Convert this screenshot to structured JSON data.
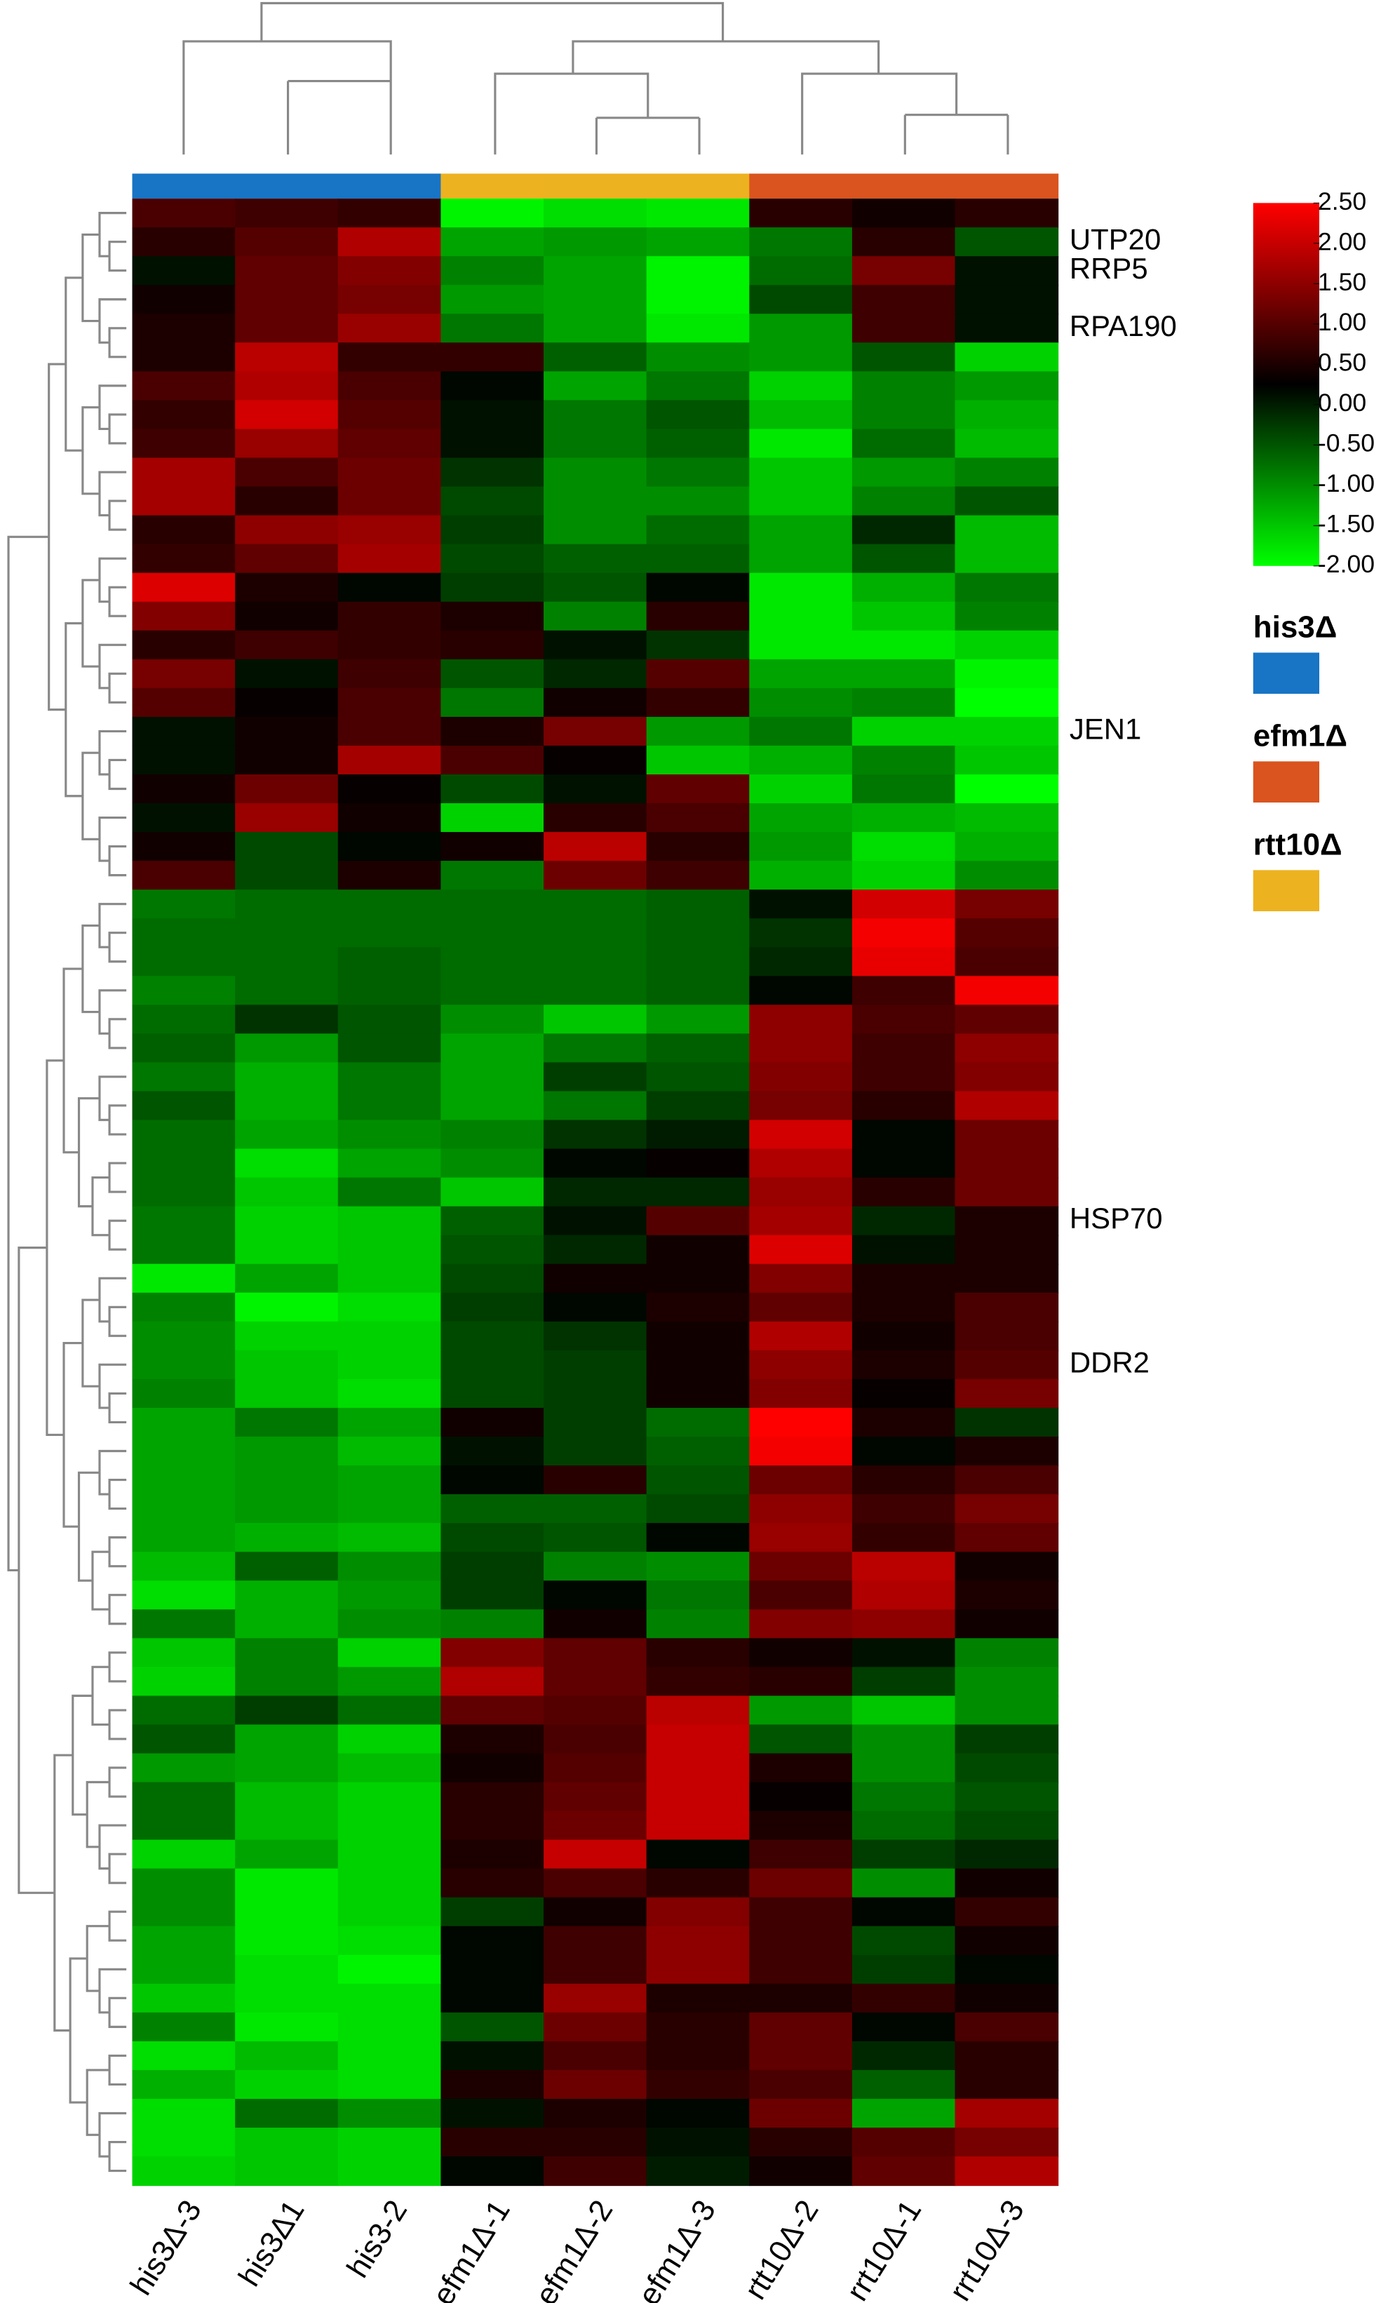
{
  "chart_data": {
    "type": "heatmap",
    "columns": [
      "his3Δ-3",
      "his3Δ1",
      "his3-2",
      "efm1Δ-1",
      "efm1Δ-2",
      "efm1Δ-3",
      "rtt10Δ-2",
      "rrt10Δ-1",
      "rrt10Δ-3"
    ],
    "column_colors": [
      "#1874c4",
      "#1874c4",
      "#1874c4",
      "#edb21f",
      "#edb21f",
      "#edb21f",
      "#d9541e",
      "#d9541e",
      "#d9541e"
    ],
    "row_labels": [
      null,
      "UTP20",
      "RRP5",
      null,
      "RPA190",
      null,
      null,
      null,
      null,
      null,
      null,
      null,
      null,
      null,
      null,
      null,
      null,
      null,
      "JEN1",
      null,
      null,
      null,
      null,
      null,
      null,
      null,
      null,
      null,
      null,
      null,
      null,
      null,
      null,
      null,
      null,
      "HSP70",
      null,
      null,
      null,
      null,
      "DDR2",
      null,
      null,
      null,
      null,
      null,
      null,
      null,
      null,
      null,
      null,
      null,
      null,
      null,
      null,
      null,
      null,
      null,
      null,
      null,
      null,
      null,
      null,
      null,
      null,
      null,
      null,
      null,
      null
    ],
    "values": [
      [
        0.9,
        0.8,
        0.7,
        -1.9,
        -1.7,
        -1.8,
        0.6,
        0.4,
        0.6
      ],
      [
        0.6,
        1.0,
        1.8,
        -1.2,
        -1.1,
        -1.2,
        -0.8,
        0.6,
        -0.5
      ],
      [
        0.1,
        1.1,
        1.4,
        -0.9,
        -1.2,
        -1.9,
        -0.7,
        1.3,
        0.1
      ],
      [
        0.4,
        1.1,
        1.3,
        -1.1,
        -1.2,
        -1.9,
        -0.4,
        0.8,
        0.1
      ],
      [
        0.5,
        1.1,
        1.6,
        -0.8,
        -1.2,
        -1.8,
        -1.1,
        0.8,
        0.1
      ],
      [
        0.5,
        1.9,
        0.7,
        0.7,
        -0.6,
        -1.0,
        -1.1,
        -0.5,
        -1.6
      ],
      [
        0.9,
        1.8,
        0.9,
        0.2,
        -1.2,
        -0.8,
        -1.6,
        -0.9,
        -1.1
      ],
      [
        0.7,
        2.1,
        1.0,
        0.1,
        -0.8,
        -0.5,
        -1.4,
        -0.9,
        -1.3
      ],
      [
        0.8,
        1.6,
        1.1,
        0.1,
        -0.8,
        -0.6,
        -1.8,
        -0.7,
        -1.4
      ],
      [
        1.7,
        0.9,
        1.2,
        -0.2,
        -1.0,
        -0.8,
        -1.5,
        -1.1,
        -0.9
      ],
      [
        1.7,
        0.6,
        1.2,
        -0.4,
        -1.0,
        -1.0,
        -1.5,
        -0.9,
        -0.5
      ],
      [
        0.6,
        1.5,
        1.6,
        -0.3,
        -1.0,
        -0.7,
        -1.2,
        -0.1,
        -1.4
      ],
      [
        0.7,
        1.1,
        1.7,
        -0.4,
        -0.6,
        -0.6,
        -1.2,
        -0.5,
        -1.4
      ],
      [
        2.2,
        0.5,
        0.2,
        -0.3,
        -0.5,
        0.2,
        -1.8,
        -1.3,
        -0.8
      ],
      [
        1.4,
        0.4,
        0.7,
        0.5,
        -0.9,
        0.6,
        -1.8,
        -1.5,
        -0.9
      ],
      [
        0.6,
        0.8,
        0.7,
        0.6,
        0.1,
        -0.2,
        -1.8,
        -1.8,
        -1.6
      ],
      [
        1.3,
        0.1,
        0.8,
        -0.5,
        -0.1,
        1.0,
        -1.2,
        -1.2,
        -1.9
      ],
      [
        1.0,
        0.3,
        0.9,
        -0.8,
        0.4,
        0.7,
        -1.0,
        -0.9,
        -2.0
      ],
      [
        0.1,
        0.4,
        0.9,
        0.5,
        1.3,
        -1.1,
        -0.8,
        -1.6,
        -1.6
      ],
      [
        0.1,
        0.4,
        1.7,
        0.9,
        0.3,
        -1.5,
        -1.3,
        -0.9,
        -1.5
      ],
      [
        0.4,
        1.2,
        0.3,
        -0.4,
        0.1,
        1.1,
        -1.6,
        -0.8,
        -2.0
      ],
      [
        0.1,
        1.6,
        0.4,
        -1.6,
        0.6,
        0.9,
        -1.2,
        -1.3,
        -1.4
      ],
      [
        0.4,
        -0.4,
        0.2,
        0.4,
        1.9,
        0.6,
        -1.1,
        -1.7,
        -1.3
      ],
      [
        0.9,
        -0.4,
        0.5,
        -0.8,
        1.2,
        0.8,
        -1.3,
        -1.6,
        -1.0
      ],
      [
        -0.8,
        -0.7,
        -0.7,
        -0.7,
        -0.7,
        -0.6,
        0.1,
        2.1,
        1.3
      ],
      [
        -0.7,
        -0.7,
        -0.7,
        -0.7,
        -0.7,
        -0.6,
        -0.2,
        2.4,
        1.0
      ],
      [
        -0.7,
        -0.7,
        -0.6,
        -0.7,
        -0.7,
        -0.6,
        -0.1,
        2.3,
        0.9
      ],
      [
        -0.9,
        -0.7,
        -0.6,
        -0.7,
        -0.7,
        -0.6,
        0.2,
        0.8,
        2.4
      ],
      [
        -0.7,
        -0.2,
        -0.5,
        -1.0,
        -1.5,
        -1.1,
        1.5,
        0.9,
        1.1
      ],
      [
        -0.6,
        -1.1,
        -0.5,
        -1.2,
        -0.8,
        -0.6,
        1.5,
        0.8,
        1.5
      ],
      [
        -0.8,
        -1.3,
        -0.8,
        -1.2,
        -0.3,
        -0.5,
        1.4,
        0.8,
        1.4
      ],
      [
        -0.5,
        -1.3,
        -0.8,
        -1.2,
        -0.8,
        -0.3,
        1.3,
        0.6,
        1.8
      ],
      [
        -0.7,
        -1.2,
        -1.0,
        -0.9,
        -0.2,
        0.0,
        2.1,
        0.2,
        1.2
      ],
      [
        -0.7,
        -1.7,
        -1.2,
        -1.0,
        0.2,
        0.3,
        1.8,
        0.2,
        1.2
      ],
      [
        -0.7,
        -1.5,
        -0.8,
        -1.5,
        -0.1,
        -0.1,
        1.6,
        0.6,
        1.2
      ],
      [
        -0.8,
        -1.6,
        -1.5,
        -0.6,
        0.1,
        1.0,
        1.7,
        -0.1,
        0.5
      ],
      [
        -0.8,
        -1.6,
        -1.5,
        -0.5,
        -0.1,
        0.4,
        2.2,
        0.1,
        0.5
      ],
      [
        -1.8,
        -1.2,
        -1.5,
        -0.4,
        0.4,
        0.4,
        1.4,
        0.5,
        0.5
      ],
      [
        -0.9,
        -1.9,
        -1.7,
        -0.3,
        0.2,
        0.5,
        1.1,
        0.5,
        0.9
      ],
      [
        -1.0,
        -1.6,
        -1.6,
        -0.4,
        -0.2,
        0.4,
        1.8,
        0.4,
        0.9
      ],
      [
        -1.0,
        -1.5,
        -1.6,
        -0.4,
        -0.3,
        0.4,
        1.5,
        0.5,
        1.0
      ],
      [
        -0.9,
        -1.5,
        -1.7,
        -0.4,
        -0.3,
        0.4,
        1.4,
        0.3,
        1.3
      ],
      [
        -1.2,
        -0.8,
        -1.2,
        0.4,
        -0.3,
        -0.7,
        2.5,
        0.5,
        -0.2
      ],
      [
        -1.2,
        -1.1,
        -1.4,
        0.1,
        -0.3,
        -0.6,
        2.4,
        0.2,
        0.5
      ],
      [
        -1.2,
        -1.1,
        -1.2,
        0.2,
        0.6,
        -0.5,
        1.2,
        0.6,
        0.9
      ],
      [
        -1.2,
        -1.1,
        -1.2,
        -0.6,
        -0.6,
        -0.4,
        1.5,
        0.8,
        1.3
      ],
      [
        -1.2,
        -1.3,
        -1.4,
        -0.4,
        -0.5,
        0.2,
        1.6,
        0.7,
        1.1
      ],
      [
        -1.4,
        -0.6,
        -1.0,
        -0.3,
        -0.9,
        -1.0,
        1.2,
        1.9,
        0.4
      ],
      [
        -1.7,
        -1.3,
        -1.1,
        -0.3,
        0.2,
        -0.8,
        0.9,
        1.8,
        0.5
      ],
      [
        -0.8,
        -1.3,
        -1.0,
        -0.9,
        0.4,
        -0.9,
        1.4,
        1.5,
        0.4
      ],
      [
        -1.5,
        -0.9,
        -1.6,
        1.4,
        1.1,
        0.6,
        0.4,
        0.1,
        -0.9
      ],
      [
        -1.6,
        -0.9,
        -1.1,
        1.8,
        1.1,
        0.7,
        0.6,
        -0.3,
        -1.0
      ],
      [
        -0.7,
        -0.3,
        -0.7,
        1.1,
        1.0,
        1.9,
        -1.1,
        -1.5,
        -1.0
      ],
      [
        -0.5,
        -1.2,
        -1.6,
        0.5,
        0.9,
        2.0,
        -0.5,
        -1.0,
        -0.3
      ],
      [
        -1.1,
        -1.2,
        -1.4,
        0.4,
        1.0,
        2.0,
        0.5,
        -1.0,
        -0.4
      ],
      [
        -0.7,
        -1.4,
        -1.6,
        0.6,
        1.1,
        2.0,
        0.3,
        -0.8,
        -0.5
      ],
      [
        -0.7,
        -1.4,
        -1.6,
        0.6,
        1.2,
        2.0,
        0.5,
        -0.7,
        -0.4
      ],
      [
        -1.6,
        -1.2,
        -1.6,
        0.5,
        2.0,
        0.2,
        0.8,
        -0.3,
        -0.1
      ],
      [
        -1.0,
        -1.8,
        -1.6,
        0.6,
        0.9,
        0.6,
        1.2,
        -1.0,
        0.4
      ],
      [
        -1.0,
        -1.8,
        -1.6,
        -0.3,
        0.4,
        1.4,
        0.8,
        0.2,
        0.7
      ],
      [
        -1.2,
        -1.8,
        -1.7,
        0.2,
        0.8,
        1.5,
        0.8,
        -0.4,
        0.4
      ],
      [
        -1.2,
        -1.7,
        -1.9,
        0.2,
        0.8,
        1.5,
        0.8,
        -0.3,
        0.2
      ],
      [
        -1.5,
        -1.7,
        -1.7,
        0.2,
        1.6,
        0.5,
        0.5,
        0.7,
        0.4
      ],
      [
        -0.9,
        -1.8,
        -1.7,
        -0.5,
        1.2,
        0.6,
        1.1,
        0.2,
        0.9
      ],
      [
        -1.7,
        -1.4,
        -1.7,
        0.1,
        0.9,
        0.6,
        1.1,
        -0.1,
        0.6
      ],
      [
        -1.3,
        -1.6,
        -1.7,
        0.5,
        1.2,
        0.7,
        0.9,
        -0.6,
        0.6
      ],
      [
        -1.7,
        -0.7,
        -1.0,
        0.1,
        0.5,
        0.2,
        1.2,
        -1.2,
        1.7
      ],
      [
        -1.7,
        -1.5,
        -1.6,
        0.6,
        0.6,
        0.1,
        0.6,
        1.0,
        1.3
      ],
      [
        -1.6,
        -1.5,
        -1.6,
        0.2,
        0.8,
        0.0,
        0.4,
        1.1,
        1.8
      ]
    ],
    "zlim": [
      -2,
      2.5
    ],
    "zticks": [
      {
        "value": 2.5,
        "label": "2.50"
      },
      {
        "value": 2,
        "label": "2.00"
      },
      {
        "value": 1.5,
        "label": "1.50"
      },
      {
        "value": 1,
        "label": "1.00"
      },
      {
        "value": 0.5,
        "label": "0.50"
      },
      {
        "value": 0,
        "label": "0.00"
      },
      {
        "value": -0.5,
        "label": "-0.50"
      },
      {
        "value": -1,
        "label": "-1.00"
      },
      {
        "value": -1.5,
        "label": "-1.50"
      },
      {
        "value": -2,
        "label": "-2.00"
      }
    ],
    "colors": [
      "#00ff00",
      "#000000",
      "#ff0000"
    ],
    "legend": [
      {
        "name": "his3Δ",
        "color": "#1874c4"
      },
      {
        "name": "efm1Δ",
        "color": "#d9541e"
      },
      {
        "name": "rtt10Δ",
        "color": "#edb21f"
      }
    ]
  }
}
